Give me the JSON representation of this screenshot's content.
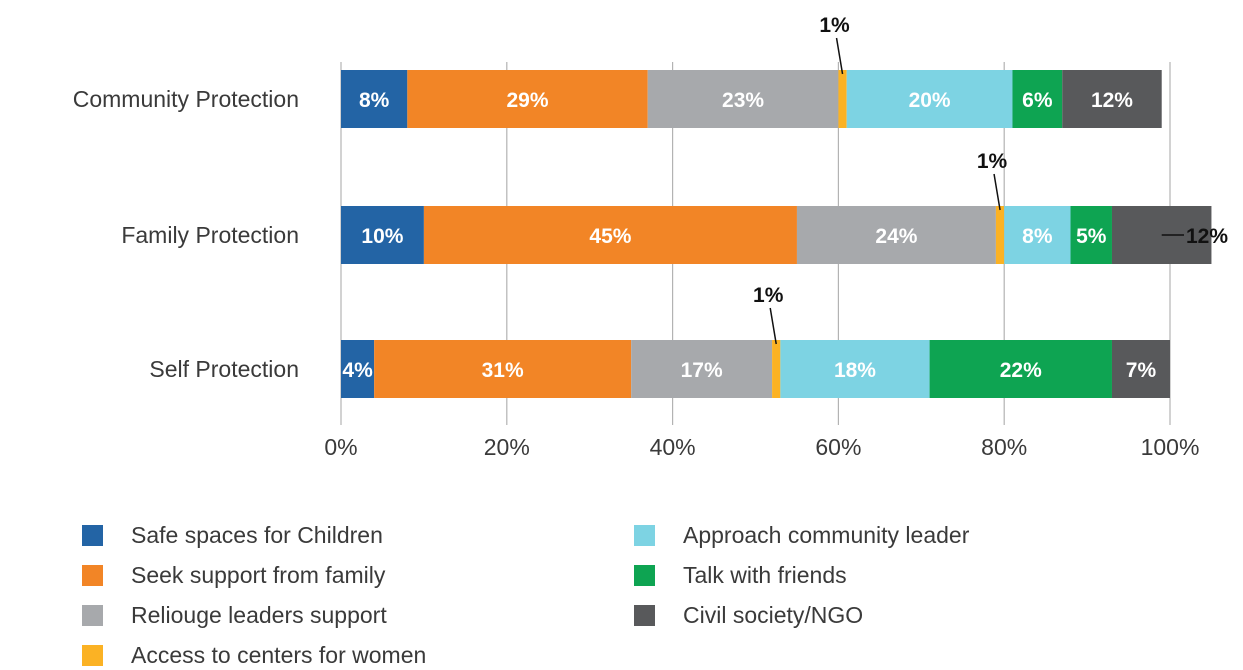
{
  "chart_data": {
    "type": "bar",
    "orientation": "horizontal",
    "stacked": true,
    "categories": [
      "Community Protection",
      "Family Protection",
      "Self Protection"
    ],
    "series": [
      {
        "name": "Safe spaces for Children",
        "color": "#2364a5",
        "values": [
          8,
          10,
          4
        ]
      },
      {
        "name": "Seek support from family",
        "color": "#f28526",
        "values": [
          29,
          45,
          31
        ]
      },
      {
        "name": "Reliouge leaders support",
        "color": "#a7a9ac",
        "values": [
          23,
          24,
          17
        ]
      },
      {
        "name": "Access to centers for women",
        "color": "#fbb224",
        "values": [
          1,
          1,
          1
        ]
      },
      {
        "name": "Approach community leader",
        "color": "#7dd3e3",
        "values": [
          20,
          8,
          18
        ]
      },
      {
        "name": "Talk with friends",
        "color": "#0ea452",
        "values": [
          6,
          5,
          22
        ]
      },
      {
        "name": "Civil society/NGO",
        "color": "#58595b",
        "values": [
          12,
          12,
          7
        ]
      }
    ],
    "data_labels": [
      [
        "8%",
        "29%",
        "23%",
        "1%",
        "20%",
        "6%",
        "12%"
      ],
      [
        "10%",
        "45%",
        "24%",
        "1%",
        "8%",
        "5%",
        "12%"
      ],
      [
        "4%",
        "31%",
        "17%",
        "1%",
        "18%",
        "22%",
        "7%"
      ]
    ],
    "xticks": [
      "0%",
      "20%",
      "40%",
      "60%",
      "80%",
      "100%"
    ],
    "xlim": [
      0,
      100
    ],
    "grid": "vertical",
    "legend_position": "bottom"
  }
}
